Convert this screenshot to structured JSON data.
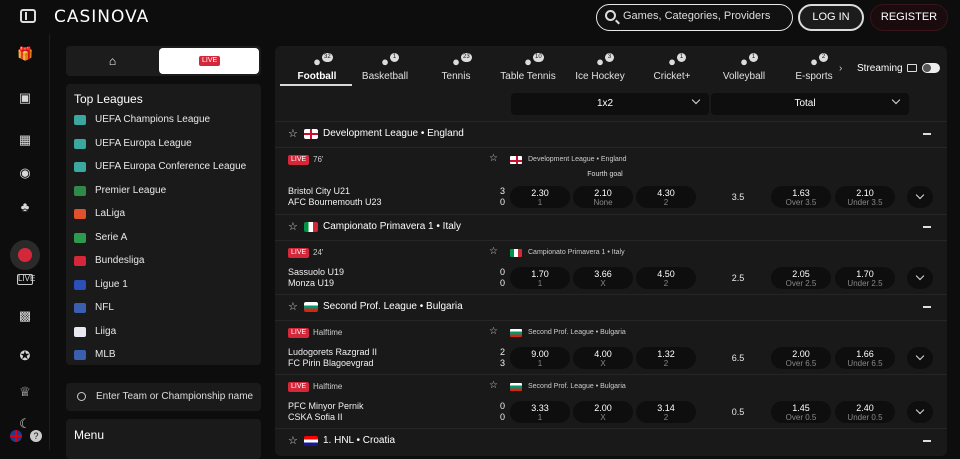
{
  "header": {
    "logo": "CASINOVA",
    "search_placeholder": "Games, Categories, Providers",
    "login_label": "LOG IN",
    "register_label": "REGISTER"
  },
  "left_rail": {
    "icons": [
      "gift-icon",
      "casino-icon",
      "slot-machine-icon",
      "poker-chip-icon",
      "clover-icon",
      "sports-ball-icon",
      "live-icon",
      "virtual-icon",
      "award-icon",
      "trophy-icon",
      "crash-icon"
    ],
    "language": "EN",
    "help_label": "?"
  },
  "sidebar": {
    "tab_home_icon": "home-icon",
    "tab_live_label": "LIVE",
    "top_leagues_title": "Top Leagues",
    "leagues": [
      {
        "name": "UEFA Champions League",
        "color": "#3aa8a0"
      },
      {
        "name": "UEFA Europa League",
        "color": "#3aa8a0"
      },
      {
        "name": "UEFA Europa Conference League",
        "color": "#3aa8a0"
      },
      {
        "name": "Premier League",
        "color": "#2f8a4a"
      },
      {
        "name": "LaLiga",
        "color": "#e0502a"
      },
      {
        "name": "Serie A",
        "color": "#2e9a4e"
      },
      {
        "name": "Bundesliga",
        "color": "#d4283a"
      },
      {
        "name": "Ligue 1",
        "color": "#2b4fb8"
      },
      {
        "name": "NFL",
        "color": "#3a5fb0"
      },
      {
        "name": "Liiga",
        "color": "#e8e8f0"
      },
      {
        "name": "MLB",
        "color": "#3a5fb0"
      }
    ],
    "team_search_placeholder": "Enter Team or Championship name",
    "menu_label": "Menu"
  },
  "sports": [
    {
      "label": "Football",
      "count": "32",
      "icon": "football-icon",
      "active": true
    },
    {
      "label": "Basketball",
      "count": "1",
      "icon": "basketball-icon"
    },
    {
      "label": "Tennis",
      "count": "23",
      "icon": "tennis-icon"
    },
    {
      "label": "Table Tennis",
      "count": "10",
      "icon": "table-tennis-icon"
    },
    {
      "label": "Ice Hockey",
      "count": "3",
      "icon": "ice-hockey-icon"
    },
    {
      "label": "Cricket+",
      "count": "1",
      "icon": "cricket-icon"
    },
    {
      "label": "Volleyball",
      "count": "1",
      "icon": "volleyball-icon"
    },
    {
      "label": "E-sports",
      "count": "2",
      "icon": "esports-icon"
    }
  ],
  "streaming_label": "Streaming",
  "markets": {
    "left": "1x2",
    "right": "Total"
  },
  "groups": [
    {
      "title": "Development League • England",
      "flag": "england",
      "matches": [
        {
          "status": "LIVE",
          "time": "76'",
          "league": "Development League • England",
          "note": "Fourth goal",
          "home": "Bristol City U21",
          "away": "AFC Bournemouth U23",
          "home_score": "3",
          "away_score": "0",
          "odds": [
            {
              "v": "2.30",
              "l": "1"
            },
            {
              "v": "2.10",
              "l": "None"
            },
            {
              "v": "4.30",
              "l": "2"
            }
          ],
          "line": "3.5",
          "totals": [
            {
              "v": "1.63",
              "l": "Over 3.5"
            },
            {
              "v": "2.10",
              "l": "Under 3.5"
            }
          ]
        }
      ]
    },
    {
      "title": "Campionato Primavera 1 • Italy",
      "flag": "italy",
      "matches": [
        {
          "status": "LIVE",
          "time": "24'",
          "league": "Campionato Primavera 1 • Italy",
          "home": "Sassuolo U19",
          "away": "Monza U19",
          "home_score": "0",
          "away_score": "0",
          "odds": [
            {
              "v": "1.70",
              "l": "1"
            },
            {
              "v": "3.66",
              "l": "X"
            },
            {
              "v": "4.50",
              "l": "2"
            }
          ],
          "line": "2.5",
          "totals": [
            {
              "v": "2.05",
              "l": "Over 2.5"
            },
            {
              "v": "1.70",
              "l": "Under 2.5"
            }
          ]
        }
      ]
    },
    {
      "title": "Second Prof. League • Bulgaria",
      "flag": "bulgaria",
      "matches": [
        {
          "status": "LIVE",
          "time": "Halftime",
          "league": "Second Prof. League • Bulgaria",
          "home": "Ludogorets Razgrad II",
          "away": "FC Pirin Blagoevgrad",
          "home_score": "2",
          "away_score": "3",
          "odds": [
            {
              "v": "9.00",
              "l": "1"
            },
            {
              "v": "4.00",
              "l": "X"
            },
            {
              "v": "1.32",
              "l": "2"
            }
          ],
          "line": "6.5",
          "totals": [
            {
              "v": "2.00",
              "l": "Over 6.5"
            },
            {
              "v": "1.66",
              "l": "Under 6.5"
            }
          ]
        },
        {
          "status": "LIVE",
          "time": "Halftime",
          "league": "Second Prof. League • Bulgaria",
          "home": "PFC Minyor Pernik",
          "away": "CSKA Sofia II",
          "home_score": "0",
          "away_score": "0",
          "odds": [
            {
              "v": "3.33",
              "l": "1"
            },
            {
              "v": "2.00",
              "l": "X"
            },
            {
              "v": "3.14",
              "l": "2"
            }
          ],
          "line": "0.5",
          "totals": [
            {
              "v": "1.45",
              "l": "Over 0.5"
            },
            {
              "v": "2.40",
              "l": "Under 0.5"
            }
          ]
        }
      ]
    },
    {
      "title": "1. HNL • Croatia",
      "flag": "croatia",
      "matches": []
    }
  ]
}
